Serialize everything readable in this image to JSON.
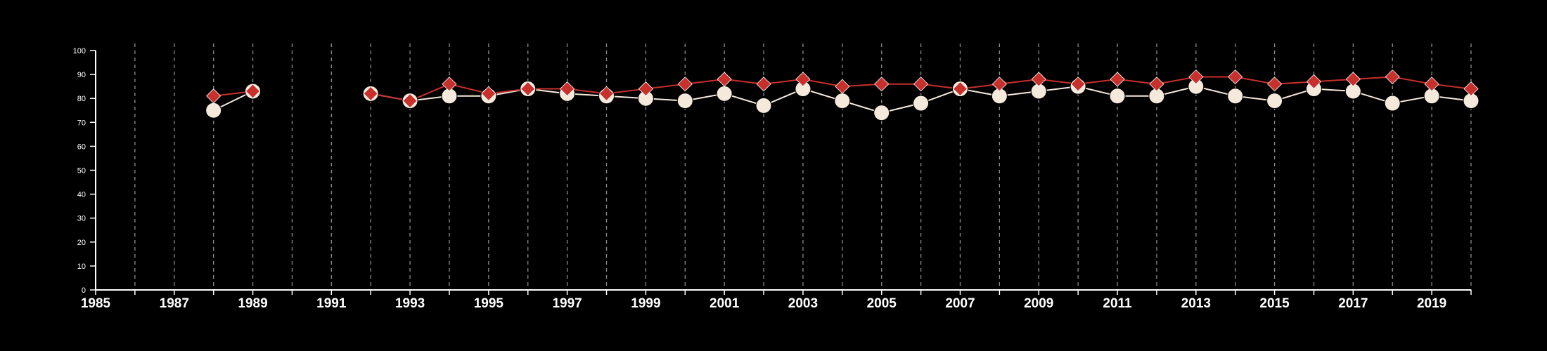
{
  "chart_data": {
    "type": "line",
    "title": "",
    "xlabel": "",
    "ylabel": "",
    "xlim": [
      1985,
      2020
    ],
    "ylim": [
      0,
      100
    ],
    "y_ticks": [
      "0",
      "10",
      "20",
      "30",
      "40",
      "50",
      "60",
      "70",
      "80",
      "90",
      "100"
    ],
    "x_ticks": [
      "1985",
      "1987",
      "1989",
      "1991",
      "1993",
      "1995",
      "1997",
      "1999",
      "2001",
      "2003",
      "2005",
      "2007",
      "2009",
      "2011",
      "2013",
      "2015",
      "2017",
      "2019"
    ],
    "grid": "vertical dashed lines at every year",
    "legend": "none",
    "colors": {
      "background": "#000000",
      "axis": "#ffffff",
      "grid": "#8c8c8c",
      "series_circle": "#f5e9dc",
      "series_diamond": "#c8302c"
    },
    "series": [
      {
        "marker": "circle",
        "color": "#f5e9dc",
        "segments": [
          [
            [
              1988,
              75
            ],
            [
              1989,
              83
            ]
          ],
          [
            [
              1992,
              82
            ],
            [
              1993,
              79
            ],
            [
              1994,
              81
            ],
            [
              1995,
              81
            ],
            [
              1996,
              84
            ],
            [
              1997,
              82
            ],
            [
              1998,
              81
            ],
            [
              1999,
              80
            ],
            [
              2000,
              79
            ],
            [
              2001,
              82
            ],
            [
              2002,
              77
            ],
            [
              2003,
              84
            ],
            [
              2004,
              79
            ],
            [
              2005,
              74
            ],
            [
              2006,
              78
            ],
            [
              2007,
              84
            ],
            [
              2008,
              81
            ],
            [
              2009,
              83
            ],
            [
              2010,
              85
            ],
            [
              2011,
              81
            ],
            [
              2012,
              81
            ],
            [
              2013,
              85
            ],
            [
              2014,
              81
            ],
            [
              2015,
              79
            ],
            [
              2016,
              84
            ],
            [
              2017,
              83
            ],
            [
              2018,
              78
            ],
            [
              2019,
              81
            ],
            [
              2020,
              79
            ]
          ]
        ]
      },
      {
        "marker": "diamond",
        "color": "#c8302c",
        "segments": [
          [
            [
              1988,
              81
            ],
            [
              1989,
              83
            ]
          ],
          [
            [
              1992,
              82
            ],
            [
              1993,
              79
            ],
            [
              1994,
              86
            ],
            [
              1995,
              82
            ],
            [
              1996,
              84
            ],
            [
              1997,
              84
            ],
            [
              1998,
              82
            ],
            [
              1999,
              84
            ],
            [
              2000,
              86
            ],
            [
              2001,
              88
            ],
            [
              2002,
              86
            ],
            [
              2003,
              88
            ],
            [
              2004,
              85
            ],
            [
              2005,
              86
            ],
            [
              2006,
              86
            ],
            [
              2007,
              84
            ],
            [
              2008,
              86
            ],
            [
              2009,
              88
            ],
            [
              2010,
              86
            ],
            [
              2011,
              88
            ],
            [
              2012,
              86
            ],
            [
              2013,
              89
            ],
            [
              2014,
              89
            ],
            [
              2015,
              86
            ],
            [
              2016,
              87
            ],
            [
              2017,
              88
            ],
            [
              2018,
              89
            ],
            [
              2019,
              86
            ],
            [
              2020,
              84
            ]
          ]
        ]
      }
    ]
  }
}
